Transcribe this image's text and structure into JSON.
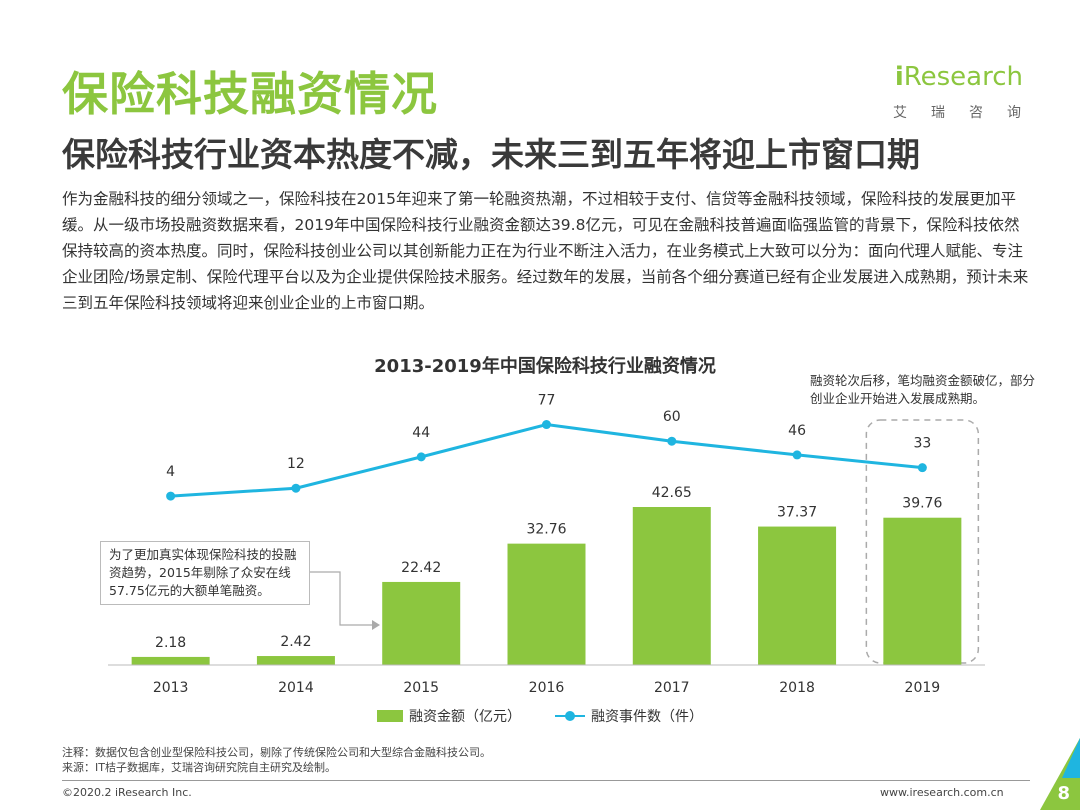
{
  "page": {
    "title": "保险科技融资情况",
    "subtitle": "保险科技行业资本热度不减，未来三到五年将迎上市窗口期",
    "body": "作为金融科技的细分领域之一，保险科技在2015年迎来了第一轮融资热潮，不过相较于支付、信贷等金融科技领域，保险科技的发展更加平缓。从一级市场投融资数据来看，2019年中国保险科技行业融资金额达39.8亿元，可见在金融科技普遍面临强监管的背景下，保险科技依然保持较高的资本热度。同时，保险科技创业公司以其创新能力正在为行业不断注入活力，在业务模式上大致可以分为：面向代理人赋能、专注企业团险/场景定制、保险代理平台以及为企业提供保险技术服务。经过数年的发展，当前各个细分赛道已经有企业发展进入成熟期，预计未来三到五年保险科技领域将迎来创业企业的上市窗口期。",
    "logo_text_i": "i",
    "logo_text_rest": "Research",
    "logo_sub": [
      "艾",
      "瑞",
      "咨",
      "询"
    ],
    "annotation_left": "为了更加真实体现保险科技的投融资趋势，2015年剔除了众安在线57.75亿元的大额单笔融资。",
    "annotation_right": "融资轮次后移，笔均融资金额破亿，部分创业企业开始进入发展成熟期。",
    "footnote_1": "注释：数据仅包含创业型保险科技公司，剔除了传统保险公司和大型综合金融科技公司。",
    "footnote_2": "来源：IT桔子数据库，艾瑞咨询研究院自主研究及绘制。",
    "copyright": "©2020.2 iResearch Inc.",
    "website": "www.iresearch.com.cn",
    "page_number": "8",
    "colors": {
      "accent": "#8cc63f",
      "line": "#1fb5e0"
    }
  },
  "chart_data": {
    "type": "bar",
    "title": "2013-2019年中国保险科技行业融资情况",
    "categories": [
      "2013",
      "2014",
      "2015",
      "2016",
      "2017",
      "2018",
      "2019"
    ],
    "series": [
      {
        "name": "融资金额（亿元）",
        "type": "bar",
        "values": [
          2.18,
          2.42,
          22.42,
          32.76,
          42.65,
          37.37,
          39.76
        ]
      },
      {
        "name": "融资事件数（件）",
        "type": "line",
        "values": [
          4,
          12,
          44,
          77,
          60,
          46,
          33
        ]
      }
    ],
    "legend_position": "bottom",
    "grid": false
  }
}
